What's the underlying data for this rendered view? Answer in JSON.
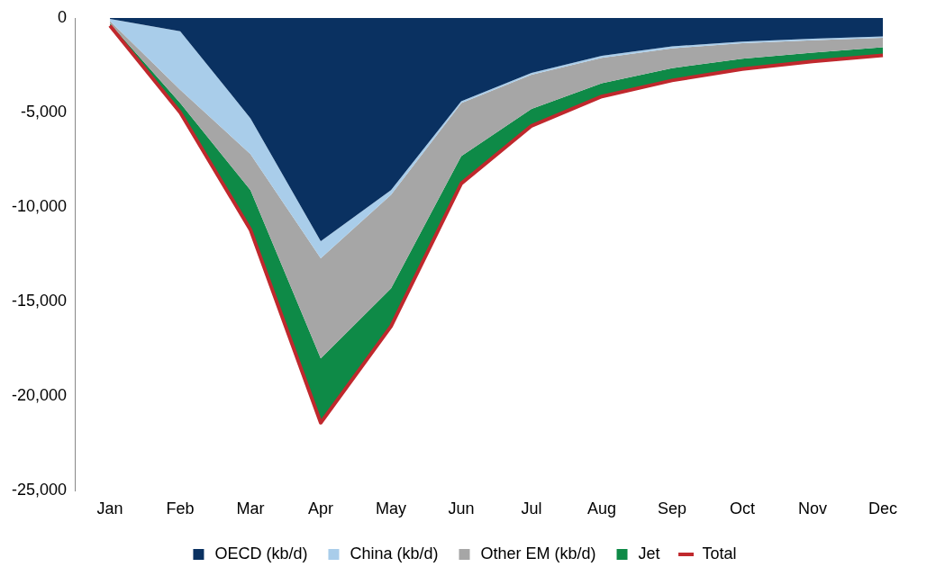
{
  "chart_data": {
    "type": "area",
    "stacked": true,
    "categories": [
      "Jan",
      "Feb",
      "Mar",
      "Apr",
      "May",
      "Jun",
      "Jul",
      "Aug",
      "Sep",
      "Oct",
      "Nov",
      "Dec"
    ],
    "series": [
      {
        "name": "OECD (kb/d)",
        "color": "#0a3161",
        "values": [
          -50,
          -700,
          -5300,
          -11800,
          -9100,
          -4400,
          -2900,
          -2000,
          -1500,
          -1250,
          -1100,
          -970
        ]
      },
      {
        "name": "China (kb/d)",
        "color": "#a9cdea",
        "values": [
          -100,
          -3100,
          -1900,
          -900,
          -250,
          -100,
          -100,
          -100,
          -100,
          -80,
          -80,
          -80
        ]
      },
      {
        "name": "Other EM (kb/d)",
        "color": "#a6a6a6",
        "values": [
          -150,
          -700,
          -1900,
          -5300,
          -4950,
          -2800,
          -1800,
          -1350,
          -1050,
          -820,
          -650,
          -500
        ]
      },
      {
        "name": "Jet",
        "color": "#0e8a47",
        "values": [
          -100,
          -500,
          -2100,
          -3400,
          -2000,
          -1450,
          -900,
          -700,
          -650,
          -550,
          -470,
          -430
        ]
      },
      {
        "name": "Total",
        "type": "line",
        "color": "#c0282d",
        "values": [
          -400,
          -5000,
          -11200,
          -21400,
          -16300,
          -8750,
          -5700,
          -4150,
          -3300,
          -2700,
          -2300,
          -1980
        ]
      }
    ],
    "ylim": [
      -25000,
      0
    ],
    "yticks": [
      {
        "value": -25000,
        "label": "-25,000"
      },
      {
        "value": -20000,
        "label": "-20,000"
      },
      {
        "value": -15000,
        "label": "-15,000"
      },
      {
        "value": -10000,
        "label": "-10,000"
      },
      {
        "value": -5000,
        "label": "-5,000"
      },
      0
    ],
    "grid": false,
    "legend": "bottom"
  }
}
